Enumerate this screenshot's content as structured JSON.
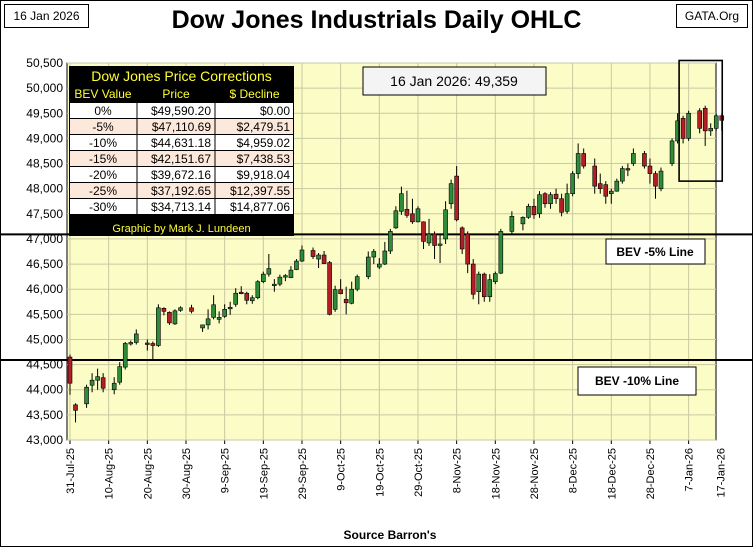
{
  "header": {
    "date_label": "16 Jan 2026",
    "source_label": "GATA.Org",
    "title": "Dow Jones Industrials Daily OHLC"
  },
  "annotation": {
    "current_value": "16 Jan 2026:  49,359"
  },
  "corrections_table": {
    "title": "Dow Jones Price Corrections",
    "columns": [
      "BEV Value",
      "Price",
      "$ Decline"
    ],
    "rows": [
      [
        "0%",
        "$49,590.20",
        "$0.00"
      ],
      [
        "-5%",
        "$47,110.69",
        "$2,479.51"
      ],
      [
        "-10%",
        "$44,631.18",
        "$4,959.02"
      ],
      [
        "-15%",
        "$42,151.67",
        "$7,438.53"
      ],
      [
        "-20%",
        "$39,672.16",
        "$9,918.04"
      ],
      [
        "-25%",
        "$37,192.65",
        "$12,397.55"
      ],
      [
        "-30%",
        "$34,713.14",
        "$14,877.06"
      ]
    ],
    "footer": "Graphic by Mark J. Lundeen"
  },
  "colors": {
    "plot_bg": "#fcfcc6",
    "grid": "#c9c9a2",
    "up_candle": "#2e8b3a",
    "down_candle": "#b21e25",
    "table_bg": "#000000",
    "table_title": "#ffff33",
    "row_odd": "#ffffff",
    "row_even": "#fde9dc"
  },
  "chart_data": {
    "type": "candlestick",
    "title": "Dow Jones Industrials Daily OHLC",
    "xlabel": "Source Barron's",
    "ylabel": "",
    "ylim": [
      43000,
      50500
    ],
    "yticks": [
      43000,
      43500,
      44000,
      44500,
      45000,
      45500,
      46000,
      46500,
      47000,
      47500,
      48000,
      48500,
      49000,
      49500,
      50000,
      50500
    ],
    "ytick_labels": [
      "43,000",
      "43,500",
      "44,000",
      "44,500",
      "45,000",
      "45,500",
      "46,000",
      "46,500",
      "47,000",
      "47,500",
      "48,000",
      "48,500",
      "49,000",
      "49,500",
      "50,000",
      "50,500"
    ],
    "x_count": 117,
    "xtick_index": [
      0,
      7,
      14,
      21,
      28,
      35,
      42,
      49,
      56,
      63,
      70,
      77,
      84,
      91,
      98,
      105,
      112
    ],
    "xtick_labels": [
      "31-Jul-25",
      "10-Aug-25",
      "20-Aug-25",
      "30-Aug-25",
      "9-Sep-25",
      "19-Sep-25",
      "29-Sep-25",
      "9-Oct-25",
      "19-Oct-25",
      "29-Oct-25",
      "8-Nov-25",
      "18-Nov-25",
      "28-Nov-25",
      "8-Dec-25",
      "18-Dec-25",
      "28-Dec-25",
      "7-Jan-26"
    ],
    "last_xtick_label": "17-Jan-26",
    "bev_lines": [
      {
        "label": "BEV -5% Line",
        "value": 47110.69
      },
      {
        "label": "BEV -10% Line",
        "value": 44631.18
      }
    ],
    "highlight_window": {
      "from_index": 111,
      "to_index": 117,
      "low": 48150,
      "high": 50550
    },
    "candles": [
      {
        "i": 0,
        "o": 44650,
        "h": 44700,
        "l": 43900,
        "c": 44130
      },
      {
        "i": 1,
        "o": 43700,
        "h": 43730,
        "l": 43350,
        "c": 43590
      },
      {
        "i": 3,
        "o": 43720,
        "h": 44100,
        "l": 43640,
        "c": 44050
      },
      {
        "i": 4,
        "o": 44090,
        "h": 44330,
        "l": 43950,
        "c": 44190
      },
      {
        "i": 5,
        "o": 44190,
        "h": 44420,
        "l": 44000,
        "c": 44260
      },
      {
        "i": 6,
        "o": 44240,
        "h": 44330,
        "l": 43950,
        "c": 44030
      },
      {
        "i": 8,
        "o": 44000,
        "h": 44250,
        "l": 43910,
        "c": 44130
      },
      {
        "i": 9,
        "o": 44150,
        "h": 44550,
        "l": 44100,
        "c": 44460
      },
      {
        "i": 10,
        "o": 44450,
        "h": 44950,
        "l": 44400,
        "c": 44920
      },
      {
        "i": 11,
        "o": 44910,
        "h": 44980,
        "l": 44880,
        "c": 44940
      },
      {
        "i": 12,
        "o": 44940,
        "h": 45200,
        "l": 44900,
        "c": 45110
      },
      {
        "i": 14,
        "o": 44930,
        "h": 45000,
        "l": 44780,
        "c": 44920
      },
      {
        "i": 15,
        "o": 44920,
        "h": 44960,
        "l": 44600,
        "c": 44880
      },
      {
        "i": 16,
        "o": 44880,
        "h": 45700,
        "l": 44850,
        "c": 45630
      },
      {
        "i": 17,
        "o": 45620,
        "h": 45640,
        "l": 45480,
        "c": 45560
      },
      {
        "i": 18,
        "o": 45540,
        "h": 45560,
        "l": 45290,
        "c": 45330
      },
      {
        "i": 19,
        "o": 45310,
        "h": 45600,
        "l": 45290,
        "c": 45570
      },
      {
        "i": 20,
        "o": 45580,
        "h": 45660,
        "l": 45550,
        "c": 45630
      },
      {
        "i": 22,
        "o": 45630,
        "h": 45690,
        "l": 45520,
        "c": 45560
      },
      {
        "i": 24,
        "o": 45230,
        "h": 45290,
        "l": 45150,
        "c": 45290
      },
      {
        "i": 25,
        "o": 45290,
        "h": 45600,
        "l": 45200,
        "c": 45410
      },
      {
        "i": 26,
        "o": 45440,
        "h": 45880,
        "l": 45400,
        "c": 45690
      },
      {
        "i": 27,
        "o": 45400,
        "h": 45560,
        "l": 45320,
        "c": 45440
      },
      {
        "i": 28,
        "o": 45460,
        "h": 45700,
        "l": 45430,
        "c": 45600
      },
      {
        "i": 29,
        "o": 45620,
        "h": 45750,
        "l": 45490,
        "c": 45640
      },
      {
        "i": 30,
        "o": 45700,
        "h": 46020,
        "l": 45650,
        "c": 45920
      },
      {
        "i": 31,
        "o": 45940,
        "h": 46060,
        "l": 45900,
        "c": 45920
      },
      {
        "i": 32,
        "o": 45920,
        "h": 45950,
        "l": 45700,
        "c": 45780
      },
      {
        "i": 33,
        "o": 45770,
        "h": 45880,
        "l": 45710,
        "c": 45830
      },
      {
        "i": 34,
        "o": 45830,
        "h": 46180,
        "l": 45800,
        "c": 46150
      },
      {
        "i": 35,
        "o": 46150,
        "h": 46350,
        "l": 46120,
        "c": 46300
      },
      {
        "i": 36,
        "o": 46300,
        "h": 46700,
        "l": 46250,
        "c": 46410
      },
      {
        "i": 37,
        "o": 46100,
        "h": 46200,
        "l": 45950,
        "c": 46100
      },
      {
        "i": 38,
        "o": 46100,
        "h": 46290,
        "l": 46060,
        "c": 46240
      },
      {
        "i": 39,
        "o": 46240,
        "h": 46300,
        "l": 46160,
        "c": 46270
      },
      {
        "i": 40,
        "o": 46230,
        "h": 46460,
        "l": 46220,
        "c": 46380
      },
      {
        "i": 41,
        "o": 46390,
        "h": 46600,
        "l": 46380,
        "c": 46560
      },
      {
        "i": 42,
        "o": 46560,
        "h": 46870,
        "l": 46540,
        "c": 46780
      },
      {
        "i": 44,
        "o": 46770,
        "h": 46830,
        "l": 46600,
        "c": 46650
      },
      {
        "i": 45,
        "o": 46600,
        "h": 46720,
        "l": 46420,
        "c": 46680
      },
      {
        "i": 46,
        "o": 46680,
        "h": 46760,
        "l": 46500,
        "c": 46510
      },
      {
        "i": 47,
        "o": 46530,
        "h": 46560,
        "l": 45480,
        "c": 45500
      },
      {
        "i": 48,
        "o": 45600,
        "h": 46070,
        "l": 45550,
        "c": 45990
      },
      {
        "i": 49,
        "o": 45990,
        "h": 46200,
        "l": 45900,
        "c": 45910
      },
      {
        "i": 50,
        "o": 45800,
        "h": 46050,
        "l": 45500,
        "c": 45730
      },
      {
        "i": 51,
        "o": 45720,
        "h": 46150,
        "l": 45700,
        "c": 46000
      },
      {
        "i": 52,
        "o": 46000,
        "h": 46290,
        "l": 45960,
        "c": 46250
      },
      {
        "i": 54,
        "o": 46250,
        "h": 46750,
        "l": 46200,
        "c": 46640
      },
      {
        "i": 55,
        "o": 46640,
        "h": 46800,
        "l": 46500,
        "c": 46750
      },
      {
        "i": 56,
        "o": 46440,
        "h": 46620,
        "l": 46400,
        "c": 46500
      },
      {
        "i": 57,
        "o": 46500,
        "h": 46940,
        "l": 46480,
        "c": 46760
      },
      {
        "i": 58,
        "o": 46760,
        "h": 47200,
        "l": 46700,
        "c": 47150
      },
      {
        "i": 59,
        "o": 47220,
        "h": 47650,
        "l": 47200,
        "c": 47560
      },
      {
        "i": 60,
        "o": 47550,
        "h": 48040,
        "l": 47480,
        "c": 47900
      },
      {
        "i": 61,
        "o": 47590,
        "h": 47960,
        "l": 47420,
        "c": 47470
      },
      {
        "i": 62,
        "o": 47500,
        "h": 47800,
        "l": 47300,
        "c": 47340
      },
      {
        "i": 63,
        "o": 47340,
        "h": 47650,
        "l": 47330,
        "c": 47600
      },
      {
        "i": 64,
        "o": 47340,
        "h": 47350,
        "l": 46800,
        "c": 46950
      },
      {
        "i": 65,
        "o": 46920,
        "h": 47400,
        "l": 46860,
        "c": 47100
      },
      {
        "i": 66,
        "o": 47100,
        "h": 47150,
        "l": 46600,
        "c": 46870
      },
      {
        "i": 67,
        "o": 46880,
        "h": 47100,
        "l": 46520,
        "c": 46900
      },
      {
        "i": 68,
        "o": 47000,
        "h": 47750,
        "l": 46900,
        "c": 47580
      },
      {
        "i": 69,
        "o": 47700,
        "h": 48180,
        "l": 47600,
        "c": 48100
      },
      {
        "i": 70,
        "o": 48250,
        "h": 48450,
        "l": 47350,
        "c": 47380
      },
      {
        "i": 71,
        "o": 47220,
        "h": 47250,
        "l": 46700,
        "c": 46800
      },
      {
        "i": 72,
        "o": 47100,
        "h": 47150,
        "l": 46320,
        "c": 46500
      },
      {
        "i": 73,
        "o": 46500,
        "h": 46600,
        "l": 45800,
        "c": 45900
      },
      {
        "i": 74,
        "o": 45950,
        "h": 46350,
        "l": 45700,
        "c": 46300
      },
      {
        "i": 75,
        "o": 46300,
        "h": 46330,
        "l": 45750,
        "c": 45850
      },
      {
        "i": 76,
        "o": 45850,
        "h": 46300,
        "l": 45750,
        "c": 46190
      },
      {
        "i": 77,
        "o": 46150,
        "h": 46350,
        "l": 46100,
        "c": 46310
      },
      {
        "i": 78,
        "o": 46320,
        "h": 47200,
        "l": 46300,
        "c": 47150
      },
      {
        "i": 80,
        "o": 47150,
        "h": 47550,
        "l": 47100,
        "c": 47450
      },
      {
        "i": 82,
        "o": 47300,
        "h": 47450,
        "l": 47170,
        "c": 47430
      },
      {
        "i": 83,
        "o": 47430,
        "h": 47700,
        "l": 47400,
        "c": 47650
      },
      {
        "i": 84,
        "o": 47650,
        "h": 47800,
        "l": 47400,
        "c": 47480
      },
      {
        "i": 85,
        "o": 47500,
        "h": 47950,
        "l": 47420,
        "c": 47880
      },
      {
        "i": 86,
        "o": 47900,
        "h": 47930,
        "l": 47620,
        "c": 47700
      },
      {
        "i": 87,
        "o": 47700,
        "h": 47930,
        "l": 47600,
        "c": 47880
      },
      {
        "i": 88,
        "o": 47890,
        "h": 48000,
        "l": 47700,
        "c": 47800
      },
      {
        "i": 89,
        "o": 47800,
        "h": 47900,
        "l": 47450,
        "c": 47530
      },
      {
        "i": 90,
        "o": 47550,
        "h": 48100,
        "l": 47500,
        "c": 47900
      },
      {
        "i": 91,
        "o": 47900,
        "h": 48350,
        "l": 47850,
        "c": 48300
      },
      {
        "i": 92,
        "o": 48300,
        "h": 48900,
        "l": 48200,
        "c": 48700
      },
      {
        "i": 93,
        "o": 48700,
        "h": 48800,
        "l": 48400,
        "c": 48450
      },
      {
        "i": 95,
        "o": 48450,
        "h": 48600,
        "l": 47900,
        "c": 48050
      },
      {
        "i": 96,
        "o": 48100,
        "h": 48300,
        "l": 47900,
        "c": 48000
      },
      {
        "i": 97,
        "o": 48080,
        "h": 48150,
        "l": 47700,
        "c": 47850
      },
      {
        "i": 98,
        "o": 47900,
        "h": 48000,
        "l": 47700,
        "c": 47950
      },
      {
        "i": 99,
        "o": 47950,
        "h": 48200,
        "l": 47940,
        "c": 48150
      },
      {
        "i": 100,
        "o": 48150,
        "h": 48450,
        "l": 48100,
        "c": 48400
      },
      {
        "i": 101,
        "o": 48400,
        "h": 48500,
        "l": 48250,
        "c": 48380
      },
      {
        "i": 102,
        "o": 48500,
        "h": 48800,
        "l": 48450,
        "c": 48700
      },
      {
        "i": 104,
        "o": 48700,
        "h": 48750,
        "l": 48400,
        "c": 48450
      },
      {
        "i": 105,
        "o": 48450,
        "h": 48600,
        "l": 48100,
        "c": 48300
      },
      {
        "i": 106,
        "o": 48300,
        "h": 48350,
        "l": 47800,
        "c": 48050
      },
      {
        "i": 107,
        "o": 48000,
        "h": 48420,
        "l": 47950,
        "c": 48350
      },
      {
        "i": 109,
        "o": 48500,
        "h": 49000,
        "l": 48450,
        "c": 48950
      },
      {
        "i": 110,
        "o": 48950,
        "h": 49500,
        "l": 48900,
        "c": 49350
      },
      {
        "i": 111,
        "o": 49400,
        "h": 49450,
        "l": 48900,
        "c": 49000
      },
      {
        "i": 112,
        "o": 49000,
        "h": 49550,
        "l": 48950,
        "c": 49500
      },
      {
        "i": 114,
        "o": 49550,
        "h": 49600,
        "l": 49100,
        "c": 49200
      },
      {
        "i": 115,
        "o": 49600,
        "h": 49650,
        "l": 48850,
        "c": 49150
      },
      {
        "i": 116,
        "o": 49150,
        "h": 49300,
        "l": 49050,
        "c": 49200
      },
      {
        "i": 117,
        "o": 49200,
        "h": 49500,
        "l": 49150,
        "c": 49450
      },
      {
        "i": 118,
        "o": 49450,
        "h": 49500,
        "l": 49150,
        "c": 49360
      }
    ]
  }
}
